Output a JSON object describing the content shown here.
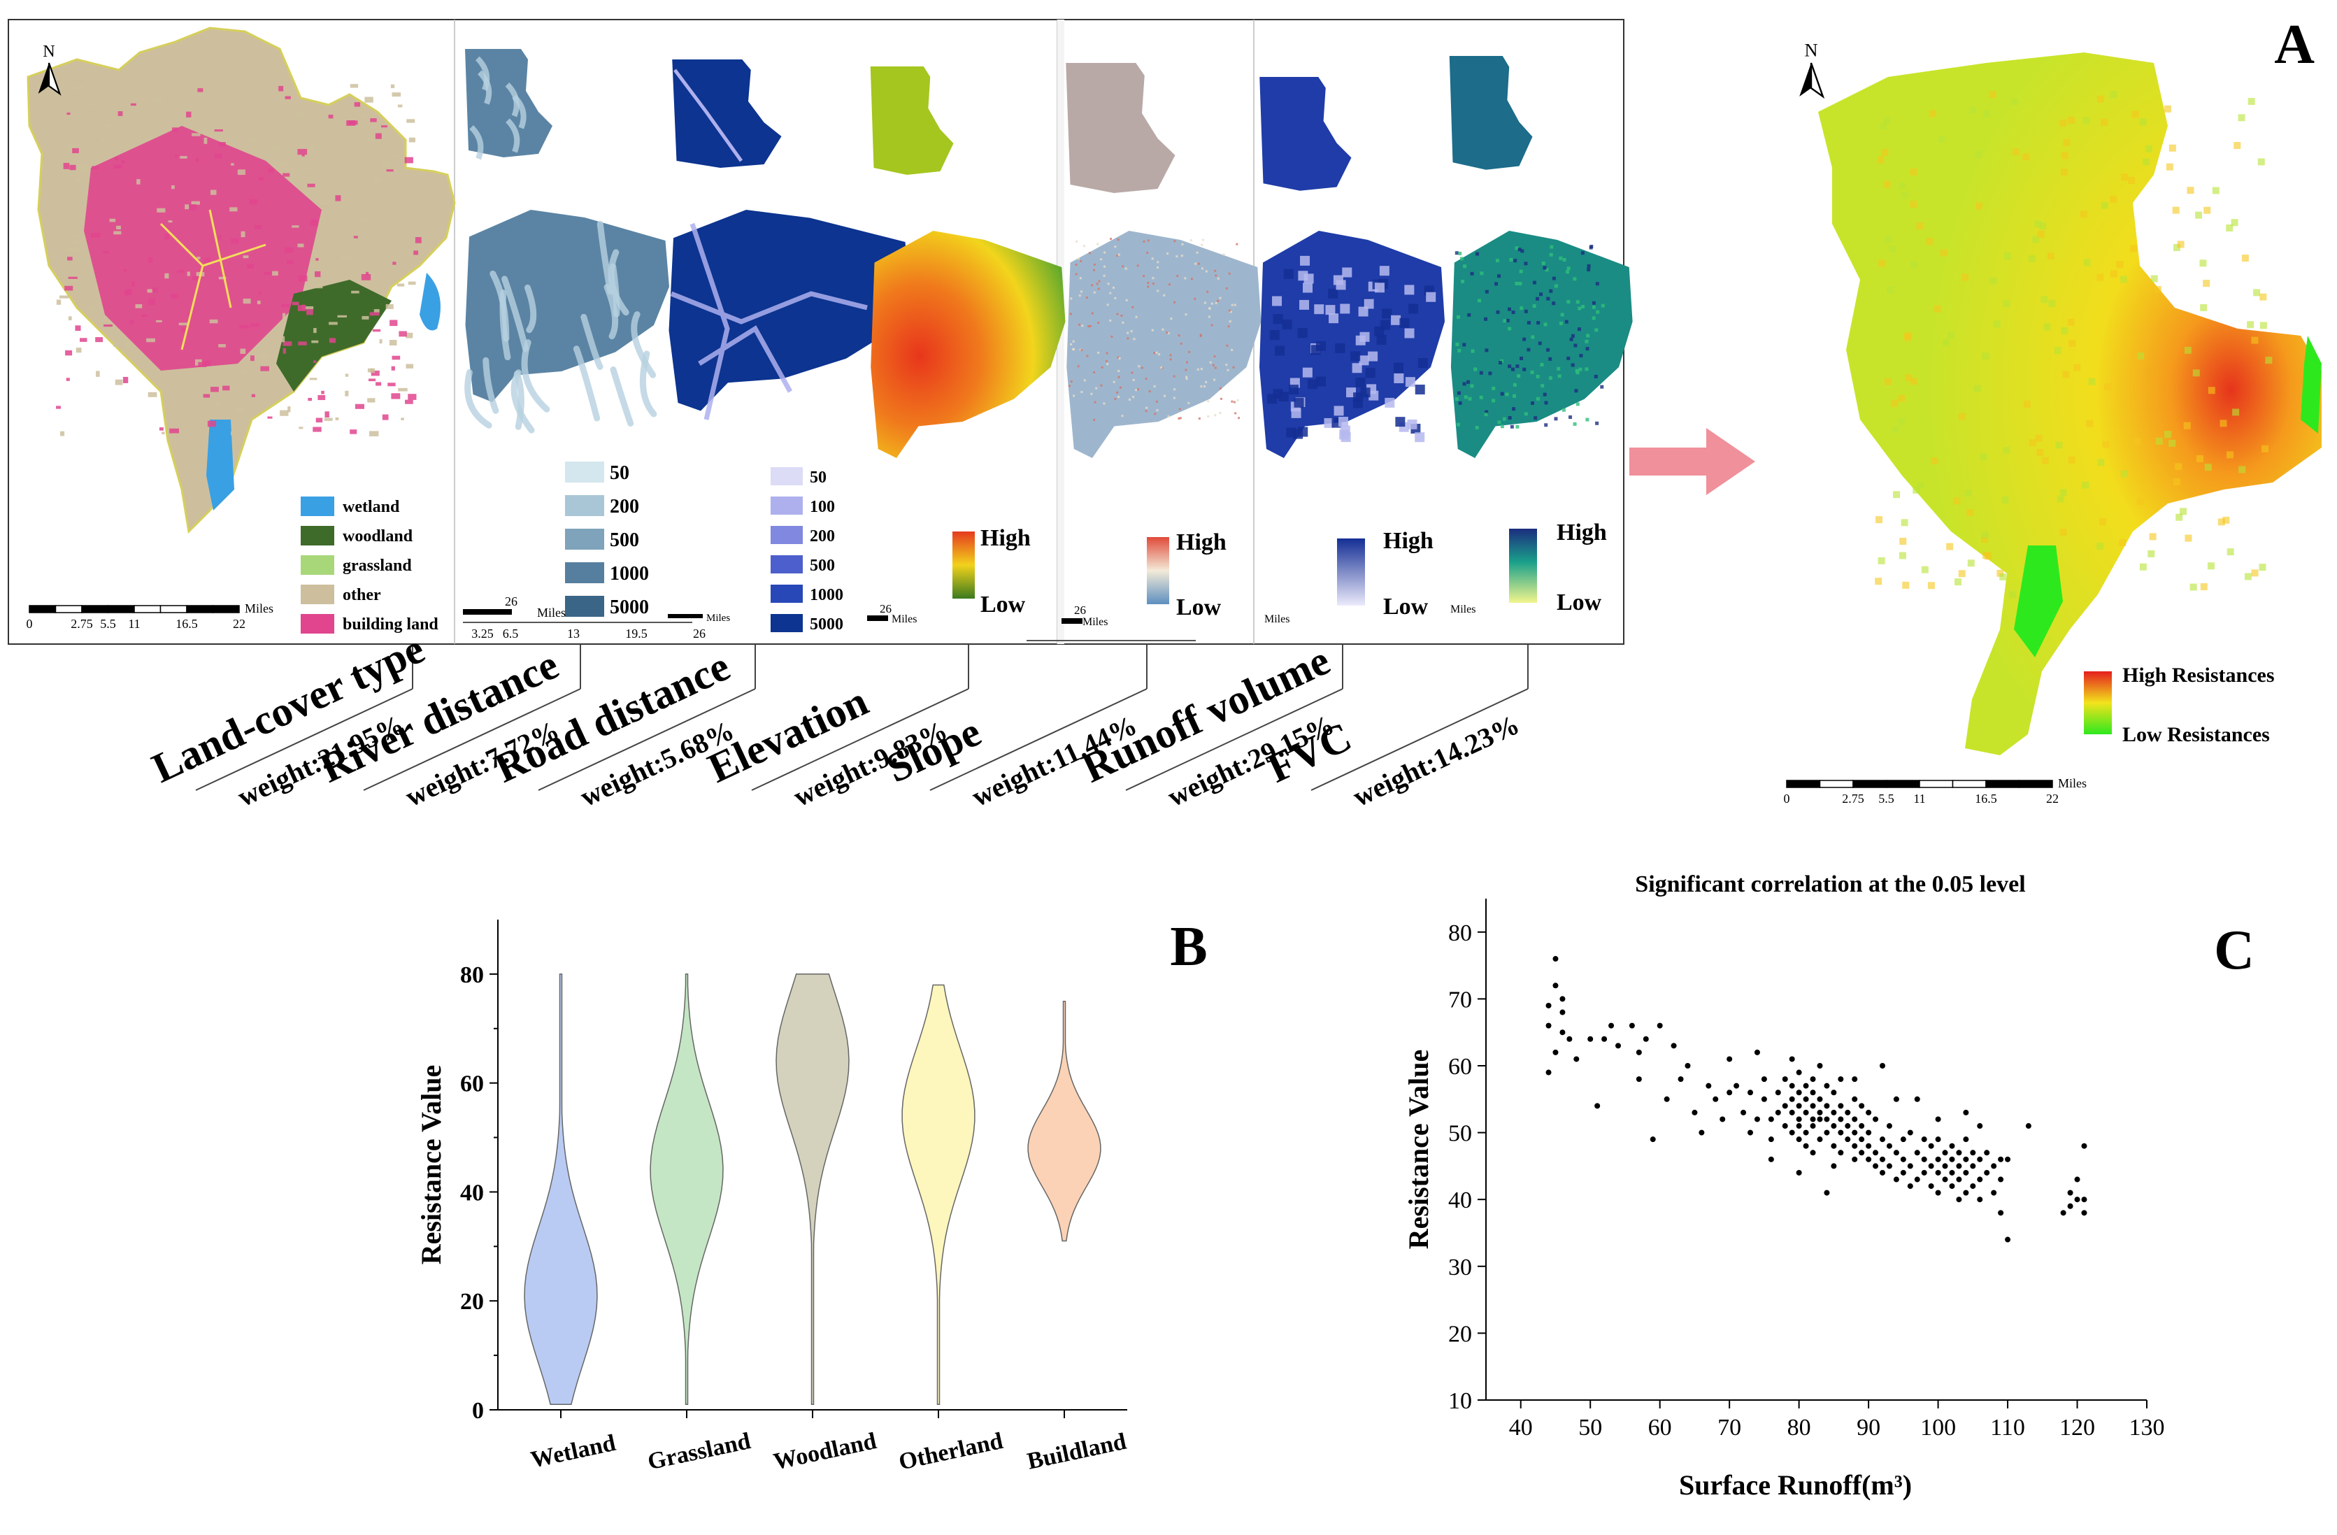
{
  "panel_labels": {
    "a": "A",
    "b": "B",
    "c": "C"
  },
  "north": "N",
  "factors": [
    {
      "name": "Land-cover type",
      "weight": "weight:21.95%"
    },
    {
      "name": "River distance",
      "weight": "weight:7.72%"
    },
    {
      "name": "Road distance",
      "weight": "weight:5.68%"
    },
    {
      "name": "Elevation",
      "weight": "weight:9.83%"
    },
    {
      "name": "Slope",
      "weight": "weight:11.44%"
    },
    {
      "name": "Runoff volume",
      "weight": "weight:29.15%"
    },
    {
      "name": "FVC",
      "weight": "weight:14.23%"
    }
  ],
  "landcover_legend": [
    {
      "label": "wetland",
      "color": "#3aa0e4"
    },
    {
      "label": "woodland",
      "color": "#3f6b2a"
    },
    {
      "label": "grassland",
      "color": "#a8d77a"
    },
    {
      "label": "other",
      "color": "#cdbf9d"
    },
    {
      "label": "building land",
      "color": "#e0458e"
    }
  ],
  "river_legend": [
    {
      "label": "50",
      "color": "#d4e6ee"
    },
    {
      "label": "200",
      "color": "#a9c6d6"
    },
    {
      "label": "500",
      "color": "#7ea3bb"
    },
    {
      "label": "1000",
      "color": "#567f9f"
    },
    {
      "label": "5000",
      "color": "#3a6587"
    }
  ],
  "road_legend": [
    {
      "label": "50",
      "color": "#dcdcf7"
    },
    {
      "label": "100",
      "color": "#aeb0ee"
    },
    {
      "label": "200",
      "color": "#8088e0"
    },
    {
      "label": "500",
      "color": "#4d5fcc"
    },
    {
      "label": "1000",
      "color": "#2848b8"
    },
    {
      "label": "5000",
      "color": "#0c3490"
    }
  ],
  "ramp_high": "High",
  "ramp_low": "Low",
  "scalebar": {
    "ticks": [
      "0",
      "2.75",
      "5.5",
      "11",
      "16.5",
      "22"
    ],
    "unit": "Miles"
  },
  "river_scalebar": {
    "top": "26",
    "ticks": [
      "3.25",
      "6.5",
      "13",
      "19.5",
      "26"
    ],
    "unit": "Miles"
  },
  "small_scale": {
    "value": "26",
    "unit": "Miles"
  },
  "resistance_legend": {
    "high": "High Resistances",
    "low": "Low Resistances"
  },
  "chart_data": [
    {
      "type": "violin",
      "panel": "B",
      "ylabel": "Resistance Value",
      "ylim": [
        0,
        90
      ],
      "yticks": [
        0,
        20,
        40,
        60,
        80
      ],
      "categories": [
        "Wetland",
        "Grassland",
        "Woodland",
        "Otherland",
        "Buildland"
      ],
      "colors": [
        "#b9cbf3",
        "#c4e6c4",
        "#d4d2bd",
        "#fdf6bd",
        "#fbd2b5"
      ],
      "ranges": [
        [
          1,
          80
        ],
        [
          1,
          80
        ],
        [
          1,
          80
        ],
        [
          1,
          78
        ],
        [
          31,
          75
        ]
      ],
      "modes": [
        21,
        44,
        64,
        54,
        48
      ]
    },
    {
      "type": "scatter",
      "panel": "C",
      "title": "Significant correlation at the 0.05 level",
      "xlabel": "Surface Runoff(m³)",
      "ylabel": "Resistance Value",
      "xlim": [
        35,
        130
      ],
      "ylim": [
        10,
        85
      ],
      "xticks": [
        40,
        50,
        60,
        70,
        80,
        90,
        100,
        110,
        120,
        130
      ],
      "yticks": [
        10,
        20,
        30,
        40,
        50,
        60,
        70,
        80
      ],
      "points": [
        [
          44,
          69
        ],
        [
          45,
          76
        ],
        [
          45,
          72
        ],
        [
          46,
          70
        ],
        [
          44,
          66
        ],
        [
          46,
          65
        ],
        [
          47,
          64
        ],
        [
          45,
          62
        ],
        [
          44,
          59
        ],
        [
          48,
          61
        ],
        [
          46,
          68
        ],
        [
          50,
          64
        ],
        [
          52,
          64
        ],
        [
          53,
          66
        ],
        [
          54,
          63
        ],
        [
          56,
          66
        ],
        [
          57,
          62
        ],
        [
          58,
          64
        ],
        [
          60,
          66
        ],
        [
          62,
          63
        ],
        [
          64,
          60
        ],
        [
          51,
          54
        ],
        [
          57,
          58
        ],
        [
          59,
          49
        ],
        [
          61,
          55
        ],
        [
          63,
          58
        ],
        [
          65,
          53
        ],
        [
          66,
          50
        ],
        [
          67,
          57
        ],
        [
          68,
          55
        ],
        [
          69,
          52
        ],
        [
          70,
          56
        ],
        [
          70,
          61
        ],
        [
          71,
          57
        ],
        [
          72,
          53
        ],
        [
          73,
          56
        ],
        [
          73,
          50
        ],
        [
          74,
          52
        ],
        [
          75,
          55
        ],
        [
          75,
          58
        ],
        [
          76,
          52
        ],
        [
          76,
          49
        ],
        [
          77,
          53
        ],
        [
          77,
          56
        ],
        [
          78,
          51
        ],
        [
          78,
          54
        ],
        [
          78,
          58
        ],
        [
          79,
          50
        ],
        [
          79,
          53
        ],
        [
          79,
          55
        ],
        [
          79,
          57
        ],
        [
          80,
          49
        ],
        [
          80,
          51
        ],
        [
          80,
          52
        ],
        [
          80,
          54
        ],
        [
          80,
          56
        ],
        [
          80,
          59
        ],
        [
          81,
          48
        ],
        [
          81,
          50
        ],
        [
          81,
          53
        ],
        [
          81,
          55
        ],
        [
          81,
          57
        ],
        [
          82,
          47
        ],
        [
          82,
          51
        ],
        [
          82,
          52
        ],
        [
          82,
          54
        ],
        [
          82,
          56
        ],
        [
          82,
          58
        ],
        [
          83,
          49
        ],
        [
          83,
          52
        ],
        [
          83,
          53
        ],
        [
          83,
          55
        ],
        [
          84,
          50
        ],
        [
          84,
          52
        ],
        [
          84,
          54
        ],
        [
          84,
          57
        ],
        [
          85,
          48
        ],
        [
          85,
          51
        ],
        [
          85,
          53
        ],
        [
          85,
          56
        ],
        [
          86,
          47
        ],
        [
          86,
          50
        ],
        [
          86,
          52
        ],
        [
          86,
          54
        ],
        [
          87,
          49
        ],
        [
          87,
          51
        ],
        [
          87,
          53
        ],
        [
          88,
          46
        ],
        [
          88,
          48
        ],
        [
          88,
          50
        ],
        [
          88,
          52
        ],
        [
          88,
          55
        ],
        [
          89,
          47
        ],
        [
          89,
          49
        ],
        [
          89,
          51
        ],
        [
          90,
          46
        ],
        [
          90,
          48
        ],
        [
          90,
          50
        ],
        [
          90,
          53
        ],
        [
          91,
          45
        ],
        [
          91,
          47
        ],
        [
          91,
          52
        ],
        [
          92,
          44
        ],
        [
          92,
          46
        ],
        [
          92,
          49
        ],
        [
          93,
          45
        ],
        [
          93,
          48
        ],
        [
          93,
          51
        ],
        [
          94,
          43
        ],
        [
          94,
          47
        ],
        [
          95,
          44
        ],
        [
          95,
          46
        ],
        [
          95,
          49
        ],
        [
          96,
          42
        ],
        [
          96,
          45
        ],
        [
          97,
          43
        ],
        [
          97,
          47
        ],
        [
          98,
          44
        ],
        [
          98,
          46
        ],
        [
          99,
          42
        ],
        [
          99,
          45
        ],
        [
          99,
          48
        ],
        [
          100,
          41
        ],
        [
          100,
          44
        ],
        [
          100,
          46
        ],
        [
          100,
          49
        ],
        [
          101,
          43
        ],
        [
          101,
          45
        ],
        [
          101,
          47
        ],
        [
          102,
          42
        ],
        [
          102,
          44
        ],
        [
          102,
          46
        ],
        [
          102,
          48
        ],
        [
          103,
          40
        ],
        [
          103,
          43
        ],
        [
          103,
          45
        ],
        [
          103,
          47
        ],
        [
          104,
          41
        ],
        [
          104,
          44
        ],
        [
          104,
          46
        ],
        [
          104,
          49
        ],
        [
          105,
          42
        ],
        [
          105,
          45
        ],
        [
          105,
          47
        ],
        [
          106,
          40
        ],
        [
          106,
          43
        ],
        [
          106,
          46
        ],
        [
          107,
          44
        ],
        [
          107,
          47
        ],
        [
          108,
          41
        ],
        [
          108,
          45
        ],
        [
          109,
          38
        ],
        [
          109,
          43
        ],
        [
          109,
          46
        ],
        [
          110,
          34
        ],
        [
          110,
          46
        ],
        [
          113,
          51
        ],
        [
          118,
          38
        ],
        [
          119,
          39
        ],
        [
          119,
          41
        ],
        [
          120,
          40
        ],
        [
          120,
          43
        ],
        [
          121,
          48
        ],
        [
          121,
          38
        ],
        [
          121,
          40
        ],
        [
          79,
          61
        ],
        [
          83,
          60
        ],
        [
          86,
          58
        ],
        [
          74,
          62
        ],
        [
          92,
          60
        ],
        [
          97,
          55
        ],
        [
          88,
          58
        ],
        [
          76,
          46
        ],
        [
          84,
          41
        ],
        [
          80,
          44
        ],
        [
          96,
          50
        ],
        [
          100,
          52
        ],
        [
          104,
          53
        ],
        [
          106,
          51
        ],
        [
          85,
          45
        ],
        [
          94,
          55
        ],
        [
          89,
          54
        ],
        [
          98,
          49
        ]
      ]
    }
  ]
}
